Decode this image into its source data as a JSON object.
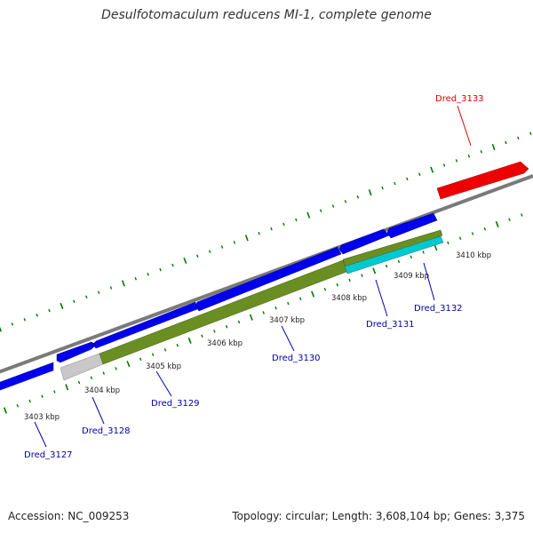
{
  "title": "Desulfotomaculum reducens MI-1, complete genome",
  "footer": {
    "accession": "Accession: NC_009253",
    "summary": "Topology: circular; Length: 3,608,104 bp; Genes: 3,375"
  },
  "colors": {
    "forward_gene": "#0000ee",
    "reverse_gene": "#6b8e23",
    "highlight_gene": "#ee0000",
    "cyan_gene": "#00c8d0",
    "grey_gene": "#c8c8c8",
    "backbone": "#808080",
    "tick": "#007700",
    "label_blue": "#0000aa",
    "label_red": "#dd0000"
  },
  "kbp_ticks": [
    "3403 kbp",
    "3404 kbp",
    "3405 kbp",
    "3406 kbp",
    "3407 kbp",
    "3408 kbp",
    "3409 kbp",
    "3410 kbp"
  ],
  "genes": [
    {
      "name": "Dred_3127",
      "color": "label_blue"
    },
    {
      "name": "Dred_3128",
      "color": "label_blue"
    },
    {
      "name": "Dred_3129",
      "color": "label_blue"
    },
    {
      "name": "Dred_3130",
      "color": "label_blue"
    },
    {
      "name": "Dred_3131",
      "color": "label_blue"
    },
    {
      "name": "Dred_3132",
      "color": "label_blue"
    },
    {
      "name": "Dred_3133",
      "color": "label_red"
    }
  ]
}
